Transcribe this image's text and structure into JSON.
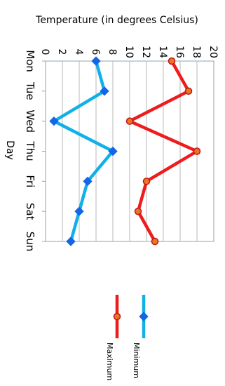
{
  "chart_data": {
    "type": "line",
    "orientation": "rotated 90 degrees clockwise",
    "ylabel": "Temperature (in degrees Celsius)",
    "xlabel": "Day",
    "categories": [
      "Mon",
      "Tue",
      "Wed",
      "Thu",
      "Fri",
      "Sat",
      "Sun"
    ],
    "ylim": [
      0,
      20
    ],
    "yticks": [
      "0",
      "2",
      "4",
      "6",
      "8",
      "10",
      "12",
      "14",
      "16",
      "18",
      "20"
    ],
    "grid": true,
    "legend_position": "bottom",
    "series": [
      {
        "name": "Minimum",
        "color": "#12B0E8",
        "marker": "diamond",
        "values": [
          6,
          7,
          1,
          8,
          5,
          4,
          3
        ]
      },
      {
        "name": "Maximum",
        "color": "#EE1C1C",
        "marker": "circle",
        "marker_color": "#E87722",
        "values": [
          15,
          17,
          10,
          18,
          12,
          11,
          13
        ]
      }
    ]
  }
}
